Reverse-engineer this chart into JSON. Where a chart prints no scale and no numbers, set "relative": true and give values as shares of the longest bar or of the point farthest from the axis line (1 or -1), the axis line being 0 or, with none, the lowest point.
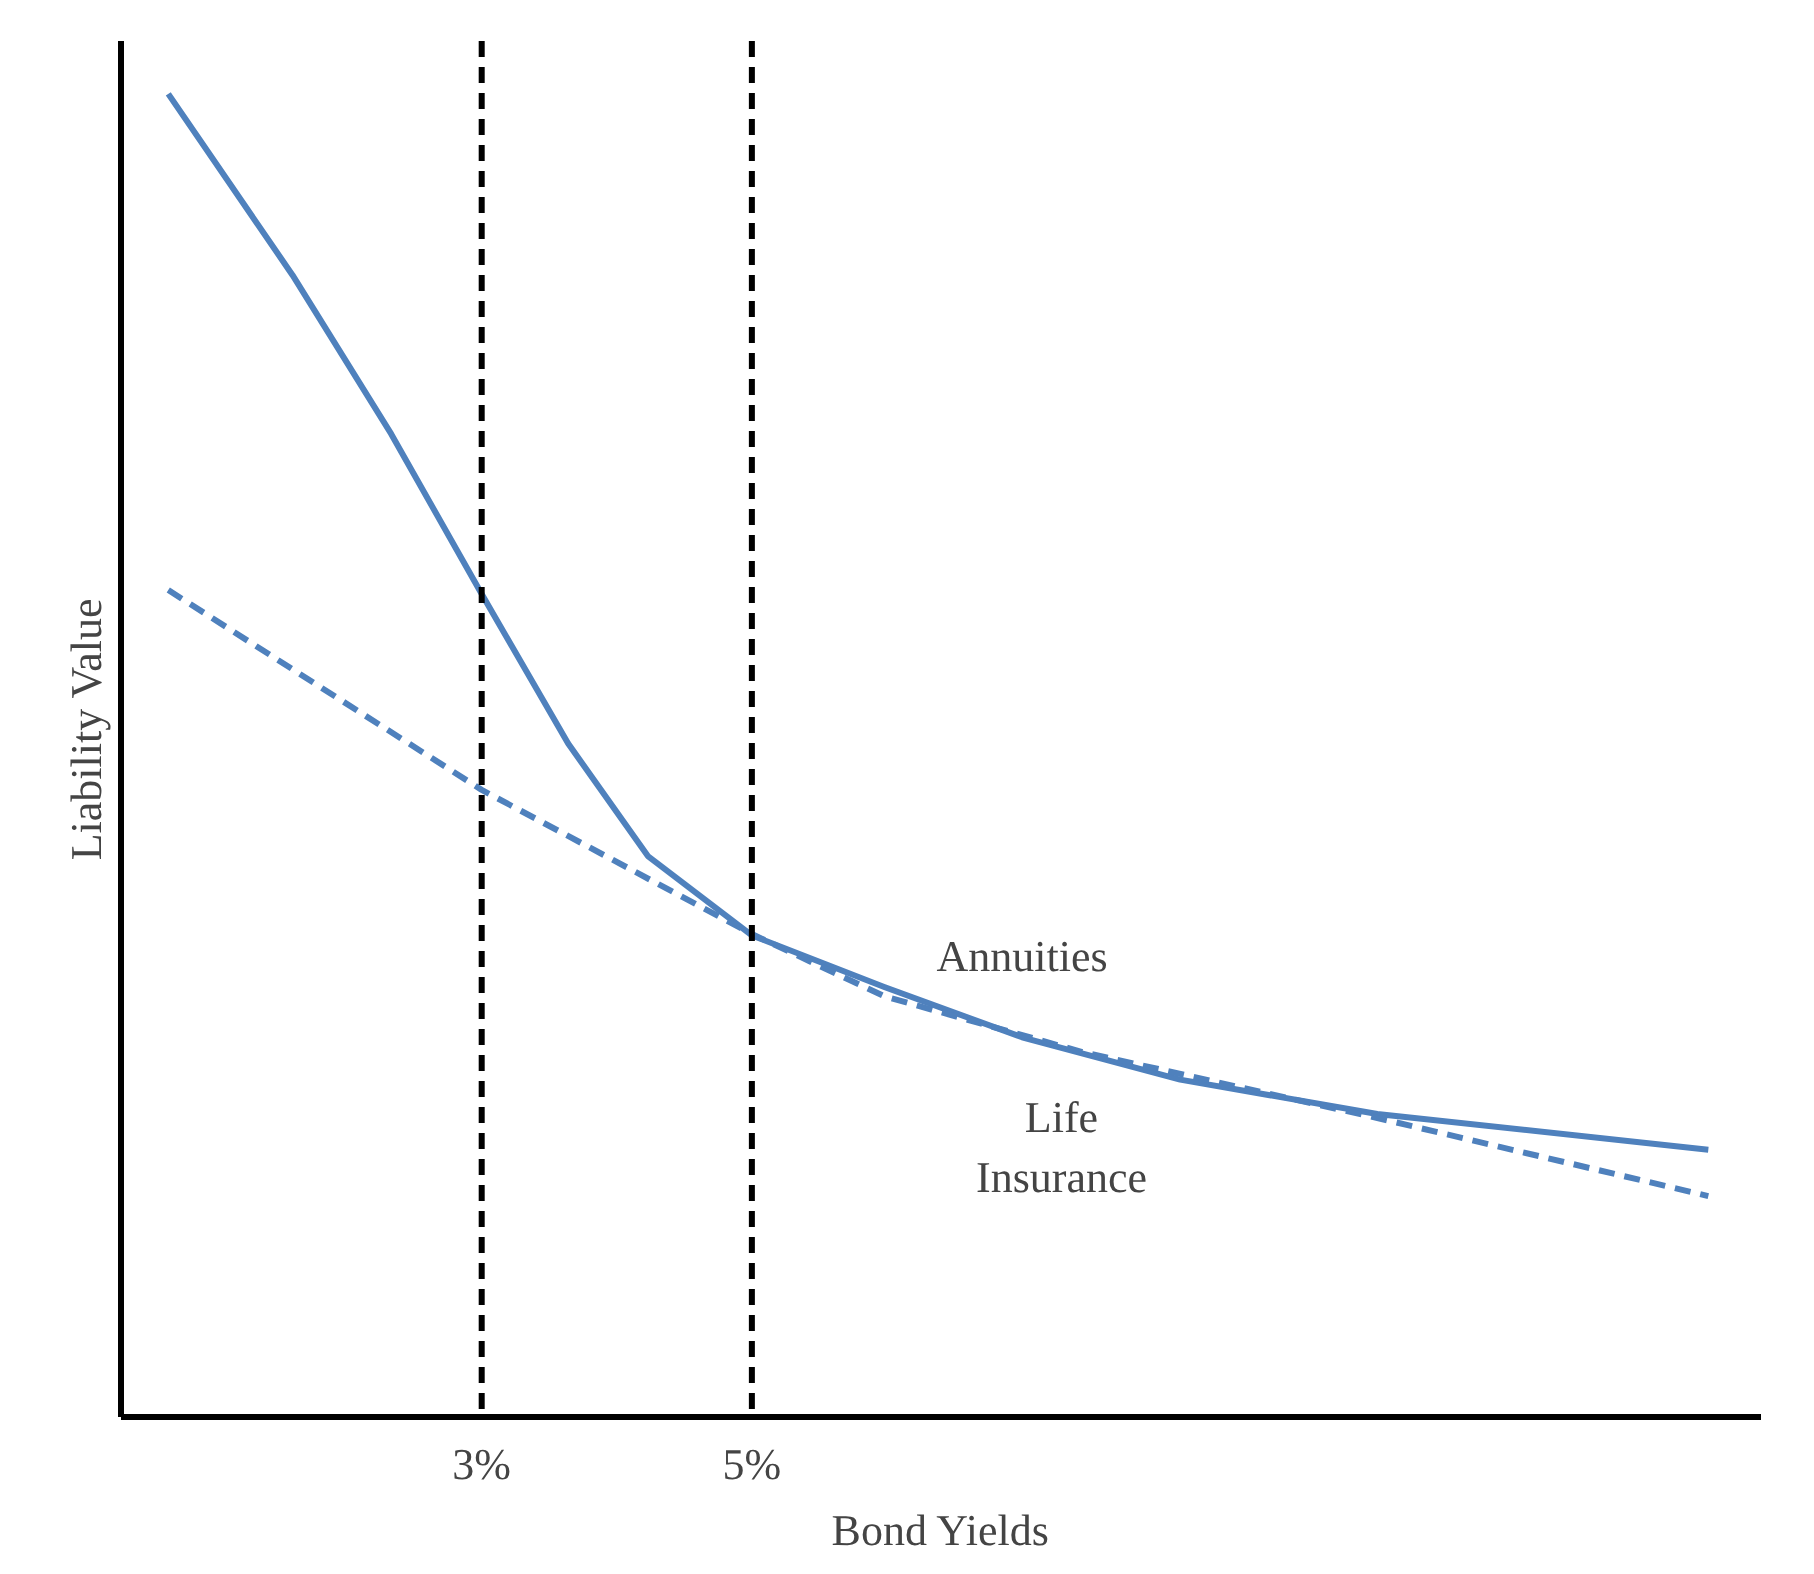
{
  "chart_data": {
    "type": "line",
    "relative": true,
    "xlabel": "Bond Yields",
    "ylabel": "Liability Value",
    "xlim": [
      0.33,
      12.47
    ],
    "xticks": [
      {
        "value": 3,
        "label": "3%"
      },
      {
        "value": 5,
        "label": "5%"
      }
    ],
    "series": [
      {
        "name": "Annuities",
        "color": "#4f81bd",
        "line_style": "solid",
        "x": [
          0.68,
          1.6,
          2.33,
          3,
          3.64,
          4.23,
          5,
          5.98,
          7.0,
          8.17,
          9.63,
          12.08
        ],
        "values": [
          1.0,
          0.863,
          0.743,
          0.622,
          0.509,
          0.424,
          0.364,
          0.325,
          0.287,
          0.255,
          0.229,
          0.202
        ]
      },
      {
        "name": "Life\nInsurance",
        "color": "#4f81bd",
        "line_style": "dashed",
        "x": [
          0.68,
          3,
          5,
          5.98,
          7.44,
          9.63,
          12.08
        ],
        "values": [
          0.625,
          0.474,
          0.365,
          0.318,
          0.276,
          0.226,
          0.167
        ]
      }
    ],
    "ref_lines": [
      {
        "axis": "x",
        "value": 3,
        "color": "#000000",
        "line_style": "dashed"
      },
      {
        "axis": "x",
        "value": 5,
        "color": "#000000",
        "line_style": "dashed"
      }
    ],
    "grid": false,
    "marker": "none"
  }
}
